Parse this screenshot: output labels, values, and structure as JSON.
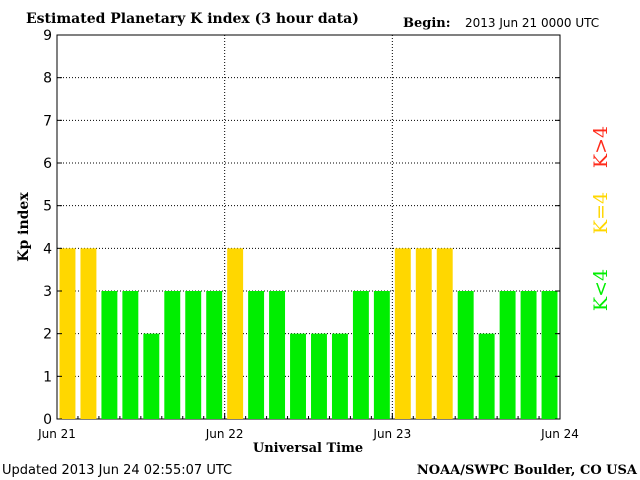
{
  "chart_data": {
    "type": "bar",
    "title": "Estimated Planetary K index (3 hour data)",
    "begin_label": "Begin:",
    "begin_value": "2013 Jun 21 0000 UTC",
    "xlabel": "Universal Time",
    "ylabel": "Kp index",
    "ylim": [
      0,
      9
    ],
    "yticks": [
      "0",
      "1",
      "2",
      "3",
      "4",
      "5",
      "6",
      "7",
      "8",
      "9"
    ],
    "x_tick_labels": [
      "Jun 21",
      "Jun 22",
      "Jun 23",
      "Jun 24"
    ],
    "grid": true,
    "values": [
      4,
      4,
      3,
      3,
      2,
      3,
      3,
      3,
      4,
      3,
      3,
      2,
      2,
      2,
      3,
      3,
      4,
      4,
      4,
      3,
      2,
      3,
      3,
      3
    ],
    "legend": [
      {
        "label": "K<4",
        "color": "#00ee00"
      },
      {
        "label": "K=4",
        "color": "#ffd700"
      },
      {
        "label": "K>4",
        "color": "#ff2a1a"
      }
    ],
    "colors": {
      "below": "#00ee00",
      "equal": "#ffd700",
      "above": "#ff2a1a"
    }
  },
  "footer": {
    "updated": "Updated 2013 Jun 24 02:55:07 UTC",
    "source": "NOAA/SWPC Boulder, CO USA"
  }
}
